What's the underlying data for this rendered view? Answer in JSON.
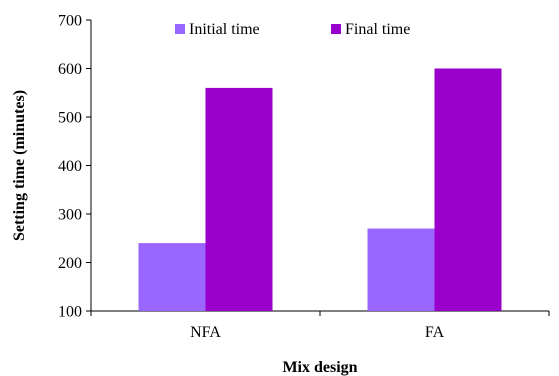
{
  "chart_data": {
    "type": "bar",
    "categories": [
      "NFA",
      "FA"
    ],
    "series": [
      {
        "name": "Initial time",
        "values": [
          240,
          270
        ],
        "color": "#9966ff"
      },
      {
        "name": "Final time",
        "values": [
          560,
          600
        ],
        "color": "#9900cc"
      }
    ],
    "xlabel": "Mix design",
    "ylabel": "Setting time (minutes)",
    "ylim": [
      100,
      700
    ],
    "yticks": [
      100,
      200,
      300,
      400,
      500,
      600,
      700
    ],
    "grid": false,
    "legend_position": "top"
  }
}
